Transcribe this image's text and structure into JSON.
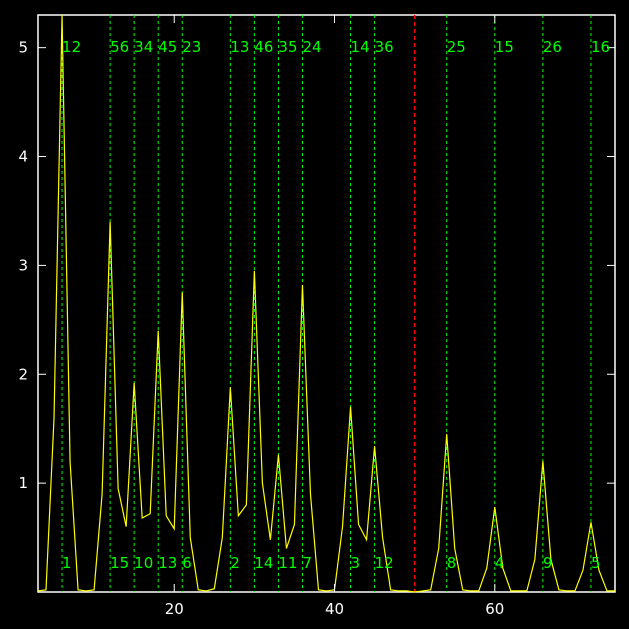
{
  "chart_data": {
    "type": "line",
    "title": "",
    "xlabel": "",
    "ylabel": "",
    "xlim": [
      3,
      75
    ],
    "ylim": [
      0,
      5.3
    ],
    "x_ticks": [
      20,
      40,
      60
    ],
    "y_ticks": [
      1,
      2,
      3,
      4,
      5
    ],
    "background": "#000000",
    "axis_color": "#ffffff",
    "line_color": "#ffff00",
    "guide_color": "#00ff00",
    "marker_color": "#ff0000",
    "series": [
      {
        "x": [
          3,
          4,
          5,
          6,
          7,
          8,
          9,
          10,
          11,
          12,
          13,
          14,
          15,
          16,
          17,
          18,
          19,
          20,
          21,
          22,
          23,
          24,
          25,
          26,
          27,
          28,
          29,
          30,
          31,
          32,
          33,
          34,
          35,
          36,
          37,
          38,
          39,
          40,
          41,
          42,
          43,
          44,
          45,
          46,
          47,
          48,
          49,
          50,
          51,
          52,
          53,
          54,
          55,
          56,
          57,
          58,
          59,
          60,
          61,
          62,
          63,
          64,
          65,
          66,
          67,
          68,
          69,
          70,
          71,
          72,
          73,
          74,
          75
        ],
        "y": [
          0.01,
          0.02,
          1.6,
          5.3,
          1.2,
          0.02,
          0.01,
          0.02,
          0.9,
          3.4,
          0.95,
          0.6,
          1.92,
          0.68,
          0.72,
          2.4,
          0.7,
          0.58,
          2.75,
          0.5,
          0.02,
          0.01,
          0.03,
          0.5,
          1.88,
          0.7,
          0.8,
          2.95,
          1.0,
          0.48,
          1.26,
          0.4,
          0.62,
          2.82,
          0.9,
          0.02,
          0.01,
          0.02,
          0.6,
          1.7,
          0.62,
          0.48,
          1.34,
          0.5,
          0.02,
          0.01,
          0.01,
          0.0,
          0.01,
          0.02,
          0.4,
          1.45,
          0.4,
          0.02,
          0.01,
          0.01,
          0.22,
          0.78,
          0.22,
          0.01,
          0.01,
          0.01,
          0.3,
          1.2,
          0.3,
          0.02,
          0.01,
          0.01,
          0.2,
          0.64,
          0.2,
          0.01,
          0.01
        ]
      }
    ],
    "peak_positions": [
      6,
      12,
      15,
      18,
      21,
      27,
      30,
      33,
      36,
      42,
      45,
      54,
      60,
      66,
      72
    ],
    "top_labels": [
      "12",
      "56",
      "34",
      "45",
      "23",
      "13",
      "46",
      "35",
      "24",
      "14",
      "36",
      "25",
      "15",
      "26",
      "16"
    ],
    "bottom_labels": [
      "1",
      "15",
      "10",
      "13",
      "6",
      "2",
      "14",
      "11",
      "7",
      "3",
      "12",
      "8",
      "4",
      "9",
      "5"
    ],
    "marker_x": 50
  }
}
